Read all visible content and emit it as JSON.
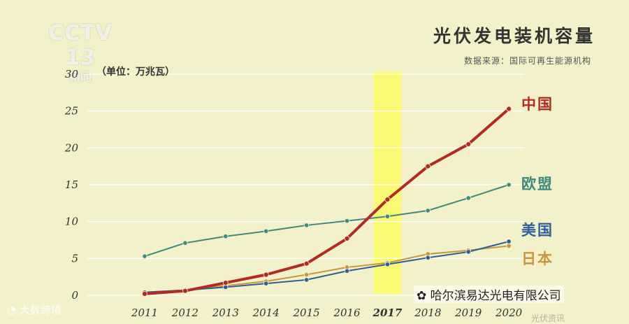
{
  "header": {
    "title": "光伏发电装机容量",
    "source": "数据来源：国际可再生能源机构",
    "logo_main": "CCTV 13",
    "logo_sub": "新闻"
  },
  "watermarks": {
    "company": "哈尔滨易达光电有限公司",
    "left": "大数跨境",
    "right": "光伏资讯"
  },
  "colors": {
    "background": "#f3f1c9",
    "china": "#b22a22",
    "eu": "#3f8a7e",
    "usa": "#2e5e9c",
    "japan": "#c8963e",
    "highlight": "#fbfb6a"
  },
  "chart_data": {
    "type": "line",
    "title": "光伏发电装机容量",
    "ylabel": "（单位：万兆瓦）",
    "ylim": [
      0,
      30
    ],
    "yticks": [
      0,
      5,
      10,
      15,
      20,
      25,
      30
    ],
    "x": [
      "2011",
      "2012",
      "2013",
      "2014",
      "2015",
      "2016",
      "2017",
      "2018",
      "2019",
      "2020"
    ],
    "highlight_category": "2017",
    "grid": true,
    "series": [
      {
        "name": "中国",
        "color": "#b22a22",
        "width": 4,
        "values": [
          0.2,
          0.6,
          1.7,
          2.8,
          4.3,
          7.7,
          13.0,
          17.5,
          20.5,
          25.3
        ]
      },
      {
        "name": "欧盟",
        "color": "#3f8a7e",
        "width": 2,
        "values": [
          5.3,
          7.1,
          8.0,
          8.7,
          9.5,
          10.1,
          10.7,
          11.5,
          13.2,
          15.0
        ]
      },
      {
        "name": "美国",
        "color": "#2e5e9c",
        "width": 2,
        "values": [
          0.4,
          0.7,
          1.1,
          1.6,
          2.1,
          3.3,
          4.2,
          5.1,
          5.9,
          7.3
        ]
      },
      {
        "name": "日本",
        "color": "#c8963e",
        "width": 2,
        "values": [
          0.4,
          0.7,
          1.3,
          1.9,
          2.8,
          3.8,
          4.4,
          5.6,
          6.1,
          6.7
        ]
      }
    ]
  }
}
